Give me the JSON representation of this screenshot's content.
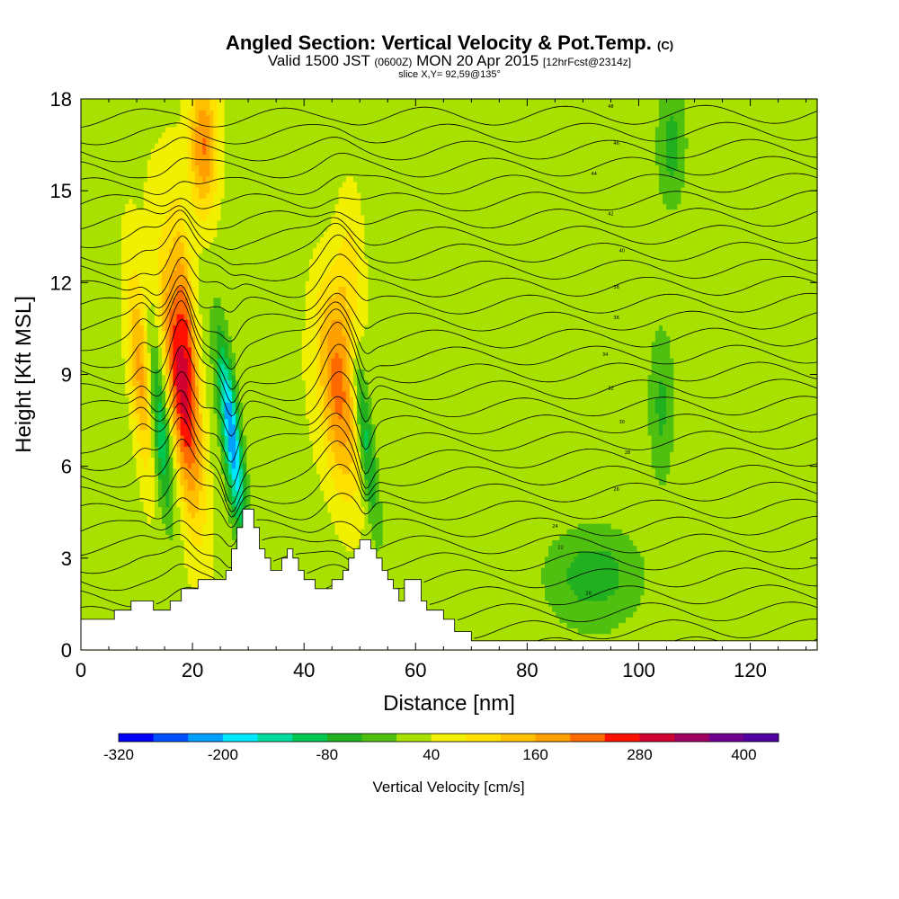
{
  "header": {
    "title": "Angled Section: Vertical Velocity & Pot.Temp.",
    "title_suffix": "(C)",
    "valid_prefix": "Valid 1500 JST",
    "valid_utc": "(0600Z)",
    "valid_date": "MON 20 Apr 2015",
    "forecast": "[12hrFcst@2314z]",
    "slice": "slice X,Y= 92,59@135°"
  },
  "chart_data": {
    "type": "heatmap",
    "xlabel": "Distance [nm]",
    "ylabel": "Height [Kft MSL]",
    "xlim": [
      0,
      132
    ],
    "ylim": [
      0,
      18
    ],
    "x_ticks": [
      0,
      20,
      40,
      60,
      80,
      100,
      120
    ],
    "y_ticks": [
      0,
      3,
      6,
      9,
      12,
      15,
      18
    ],
    "grid": false,
    "colorbar": {
      "label": "Vertical Velocity [cm/s]",
      "tick_labels": [
        "-320",
        "-200",
        "-80",
        "40",
        "160",
        "280",
        "400"
      ],
      "levels": [
        -320,
        -280,
        -240,
        -200,
        -160,
        -120,
        -80,
        -40,
        0,
        40,
        80,
        120,
        160,
        200,
        240,
        280,
        320,
        360,
        400,
        440
      ],
      "colors": [
        "#0000ff",
        "#0050ff",
        "#00a0ff",
        "#00e8ff",
        "#00dca0",
        "#00c850",
        "#20b020",
        "#50c010",
        "#a8e000",
        "#f0f000",
        "#ffe000",
        "#ffc000",
        "#ffa000",
        "#ff6a00",
        "#ff1000",
        "#d00030",
        "#a00060",
        "#700090",
        "#5000a0"
      ]
    },
    "vertical_velocity_features": [
      {
        "kind": "updraft",
        "center_x": 18,
        "center_y": 8.5,
        "peak": 300
      },
      {
        "kind": "updraft",
        "center_x": 11,
        "center_y": 9,
        "peak": 200
      },
      {
        "kind": "updraft",
        "center_x": 22,
        "center_y": 16.5,
        "peak": 200
      },
      {
        "kind": "updraft",
        "center_x": 46,
        "center_y": 8.5,
        "peak": 200
      },
      {
        "kind": "downdraft",
        "center_x": 14,
        "center_y": 7.5,
        "peak": -140
      },
      {
        "kind": "downdraft",
        "center_x": 27,
        "center_y": 7,
        "peak": -240
      },
      {
        "kind": "downdraft",
        "center_x": 51,
        "center_y": 7,
        "peak": -110
      },
      {
        "kind": "downdraft",
        "center_x": 92,
        "center_y": 2.5,
        "peak": -60
      },
      {
        "kind": "downdraft",
        "center_x": 106,
        "center_y": 16.5,
        "peak": -60
      },
      {
        "kind": "downdraft",
        "center_x": 104,
        "center_y": 8,
        "peak": -50
      }
    ],
    "potential_temperature": {
      "units": "C",
      "contour_interval": 1,
      "range": [
        17,
        49
      ],
      "printed_labels": [
        "48",
        "46",
        "44",
        "42",
        "40",
        "38",
        "36",
        "34",
        "32",
        "30",
        "28",
        "26",
        "24",
        "22",
        "20"
      ]
    },
    "terrain_profile": {
      "x": [
        0,
        5,
        6,
        8,
        9,
        10,
        11,
        13,
        14,
        16,
        17,
        18,
        19,
        21,
        23,
        25,
        26,
        27,
        28,
        29,
        30,
        31,
        32,
        33,
        34,
        35,
        36,
        37,
        38,
        39,
        40,
        41,
        42,
        43,
        44,
        45,
        46,
        47,
        48,
        49,
        50,
        51,
        52,
        53,
        54,
        55,
        56,
        57,
        58,
        59,
        60,
        61,
        62,
        63,
        64,
        65,
        66,
        67,
        68,
        69,
        70,
        71,
        72,
        132
      ],
      "y": [
        1.0,
        1.0,
        1.3,
        1.3,
        1.6,
        1.6,
        1.6,
        1.3,
        1.3,
        1.6,
        1.6,
        2.0,
        2.0,
        2.3,
        2.3,
        2.3,
        2.6,
        3.3,
        4.0,
        4.6,
        4.6,
        4.0,
        3.3,
        3.0,
        2.6,
        2.6,
        3.0,
        3.3,
        3.0,
        2.6,
        2.3,
        2.3,
        2.0,
        2.0,
        2.0,
        2.3,
        2.3,
        2.6,
        3.0,
        3.3,
        3.6,
        3.6,
        3.3,
        3.0,
        2.6,
        2.3,
        2.0,
        1.6,
        2.3,
        2.3,
        2.3,
        1.6,
        1.3,
        1.3,
        1.3,
        1.0,
        1.0,
        0.6,
        0.6,
        0.6,
        0.3,
        0.3,
        0.3,
        0.3
      ]
    }
  }
}
